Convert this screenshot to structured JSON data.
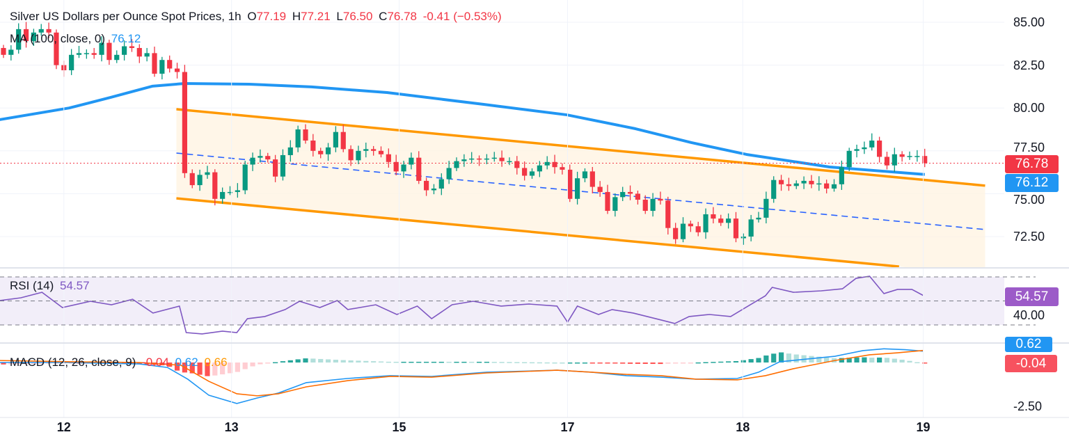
{
  "legend": {
    "title": "Silver US Dollars per Ounce Spot Prices, 1h",
    "o_label": "O",
    "o": "77.19",
    "h_label": "H",
    "h": "77.21",
    "l_label": "L",
    "l": "76.50",
    "c_label": "C",
    "c": "76.78",
    "change": "-0.41 (−0.53%)",
    "ma_label": "MA (100, close, 0)",
    "ma_value": "76.12",
    "rsi_label": "RSI (14)",
    "rsi_value": "54.57",
    "macd_label": "MACD (12, 26, close, 9)",
    "macd_hist": "-0.04",
    "macd_value": "0.62",
    "macd_signal": "0.66"
  },
  "price_tags": {
    "last": "76.78",
    "ma": "76.12",
    "rsi": "54.57",
    "macd": "0.62",
    "hist": "-0.04"
  },
  "colors": {
    "up": "#089981",
    "down": "#F23645",
    "ma": "#2196F3",
    "channel": "#FF9800",
    "rsi": "#7E57C2",
    "signal": "#FF6D00"
  },
  "chart_data": {
    "type": "candlestick",
    "title": "Silver US Dollars per Ounce Spot Prices, 1h",
    "price_axis": {
      "ticks": [
        "85.00",
        "82.50",
        "80.00",
        "77.50",
        "75.00",
        "72.50"
      ],
      "tick_values": [
        85,
        82.5,
        80,
        77.5,
        75,
        72.5
      ],
      "range": [
        70.5,
        86.3
      ]
    },
    "time_axis": {
      "labels": [
        "12",
        "13",
        "15",
        "17",
        "18",
        "19"
      ],
      "bar_index": [
        8.0,
        30.2,
        52.4,
        74.7,
        97.9,
        121.8
      ]
    },
    "first_open": 83.5,
    "closes": [
      83.1,
      83.4,
      84.6,
      83.9,
      84.4,
      84.6,
      84.4,
      82.5,
      82.2,
      83.1,
      83.2,
      83.2,
      83.1,
      83.8,
      82.8,
      83.1,
      83.6,
      83.5,
      83.0,
      83.2,
      82.0,
      82.8,
      82.3,
      82.1,
      76.2,
      75.5,
      76.1,
      76.25,
      74.7,
      75.1,
      75.1,
      75.2,
      76.7,
      77.1,
      77.2,
      77.0,
      76.0,
      77.25,
      77.7,
      78.75,
      78.1,
      77.5,
      77.3,
      77.7,
      78.6,
      77.6,
      76.95,
      77.5,
      77.6,
      77.5,
      77.3,
      76.85,
      76.3,
      76.7,
      77.1,
      75.75,
      75.2,
      75.3,
      75.85,
      76.5,
      76.9,
      77.0,
      77.05,
      77.0,
      77.05,
      77.1,
      76.9,
      76.9,
      76.5,
      76.05,
      76.3,
      76.65,
      76.85,
      76.55,
      76.4,
      74.7,
      75.9,
      76.3,
      75.4,
      75.1,
      74.0,
      74.8,
      75.1,
      75.0,
      74.65,
      74.0,
      74.7,
      74.6,
      73.0,
      72.35,
      73.25,
      73.1,
      72.75,
      73.8,
      73.55,
      73.3,
      73.55,
      72.4,
      72.5,
      73.5,
      73.6,
      74.7,
      75.8,
      75.55,
      75.45,
      75.6,
      75.75,
      75.55,
      75.6,
      75.3,
      75.55,
      76.55,
      77.5,
      77.6,
      77.7,
      78.1,
      77.15,
      76.65,
      77.3,
      77.15,
      77.2,
      77.2,
      76.78
    ],
    "ma100": [
      [
        -0.5,
        79.32
      ],
      [
        8.7,
        80.0
      ],
      [
        14.2,
        80.62
      ],
      [
        19.7,
        81.27
      ],
      [
        24,
        81.43
      ],
      [
        32.5,
        81.39
      ],
      [
        40.8,
        81.23
      ],
      [
        50.8,
        80.9
      ],
      [
        63.6,
        80.21
      ],
      [
        74.6,
        79.6
      ],
      [
        83.7,
        78.79
      ],
      [
        91.1,
        77.98
      ],
      [
        98.4,
        77.29
      ],
      [
        109.4,
        76.56
      ],
      [
        122,
        76.12
      ]
    ],
    "channel": {
      "upper": [
        [
          22.9,
          79.93
        ],
        [
          130,
          75.47
        ]
      ],
      "lower": [
        [
          22.9,
          74.73
        ],
        [
          118.6,
          70.75
        ]
      ],
      "middle": [
        [
          22.9,
          77.37
        ],
        [
          130,
          72.91
        ]
      ],
      "fill_end": 130
    },
    "last_price_line": 76.78,
    "rsi": {
      "levels": [
        70,
        50,
        30
      ],
      "axis_tick": "40.00",
      "axis_tick_value": 40,
      "points": [
        [
          -0.5,
          50.3
        ],
        [
          2.3,
          52.6
        ],
        [
          5.1,
          57.2
        ],
        [
          7.8,
          44.5
        ],
        [
          11.5,
          49.7
        ],
        [
          14.3,
          46.8
        ],
        [
          17.1,
          51.4
        ],
        [
          19.8,
          39.9
        ],
        [
          23.3,
          45.7
        ],
        [
          24.2,
          23.6
        ],
        [
          26.3,
          22.5
        ],
        [
          29,
          24.8
        ],
        [
          30.9,
          23.6
        ],
        [
          32.3,
          35.2
        ],
        [
          34.6,
          37.0
        ],
        [
          37.3,
          42.8
        ],
        [
          39.2,
          49.7
        ],
        [
          41.9,
          44.5
        ],
        [
          44.2,
          50.3
        ],
        [
          45.6,
          42.8
        ],
        [
          49.3,
          46.8
        ],
        [
          52.1,
          38.7
        ],
        [
          54.8,
          45.7
        ],
        [
          56.7,
          35.2
        ],
        [
          59.4,
          46.8
        ],
        [
          62.2,
          49.7
        ],
        [
          65.9,
          45.7
        ],
        [
          69.6,
          47.4
        ],
        [
          73.3,
          45.7
        ],
        [
          74.7,
          32.3
        ],
        [
          76,
          45.7
        ],
        [
          78.8,
          38.7
        ],
        [
          80.6,
          42.8
        ],
        [
          83.4,
          39.9
        ],
        [
          87.1,
          34.1
        ],
        [
          88.9,
          31.2
        ],
        [
          90.8,
          37.0
        ],
        [
          93.5,
          38.7
        ],
        [
          96.3,
          37.0
        ],
        [
          98.6,
          45.7
        ],
        [
          100.9,
          54.3
        ],
        [
          101.8,
          61.3
        ],
        [
          104.6,
          57.2
        ],
        [
          108.3,
          58.4
        ],
        [
          111.1,
          60.1
        ],
        [
          112.9,
          68.8
        ],
        [
          114.7,
          70.6
        ],
        [
          116.6,
          56.1
        ],
        [
          118.4,
          59.6
        ],
        [
          120.3,
          59.6
        ],
        [
          121.8,
          54.57
        ]
      ]
    },
    "macd": {
      "axis_tick": "-2.50",
      "axis_tick_value": -2.5,
      "macd": [
        [
          -0.5,
          0
        ],
        [
          8.8,
          0
        ],
        [
          18,
          -0.08
        ],
        [
          21.7,
          -0.27
        ],
        [
          24.4,
          -0.91
        ],
        [
          27.2,
          -1.79
        ],
        [
          30.9,
          -2.24
        ],
        [
          33.6,
          -1.94
        ],
        [
          36.4,
          -1.67
        ],
        [
          40.1,
          -1.1
        ],
        [
          45.6,
          -0.87
        ],
        [
          51.2,
          -0.72
        ],
        [
          56.7,
          -0.76
        ],
        [
          64,
          -0.53
        ],
        [
          73.3,
          -0.42
        ],
        [
          77.9,
          -0.53
        ],
        [
          82.5,
          -0.72
        ],
        [
          87.1,
          -0.8
        ],
        [
          91.7,
          -0.91
        ],
        [
          97.2,
          -0.87
        ],
        [
          100,
          -0.53
        ],
        [
          102.8,
          0.04
        ],
        [
          107.4,
          0.23
        ],
        [
          110.1,
          0.34
        ],
        [
          113.8,
          0.65
        ],
        [
          116.6,
          0.75
        ],
        [
          119.4,
          0.7
        ],
        [
          121.8,
          0.62
        ]
      ],
      "signal": [
        [
          -0.5,
          0.11
        ],
        [
          8.8,
          0.04
        ],
        [
          18,
          0
        ],
        [
          23.5,
          -0.15
        ],
        [
          27.2,
          -1.03
        ],
        [
          30.9,
          -1.71
        ],
        [
          33.6,
          -1.82
        ],
        [
          36.4,
          -1.71
        ],
        [
          40.1,
          -1.33
        ],
        [
          45.6,
          -0.99
        ],
        [
          51.2,
          -0.76
        ],
        [
          56.7,
          -0.8
        ],
        [
          64,
          -0.57
        ],
        [
          73.3,
          -0.42
        ],
        [
          77.9,
          -0.53
        ],
        [
          82.5,
          -0.65
        ],
        [
          87.1,
          -0.72
        ],
        [
          91.7,
          -0.91
        ],
        [
          97.2,
          -0.95
        ],
        [
          100.9,
          -0.72
        ],
        [
          104.6,
          -0.34
        ],
        [
          110.1,
          0.11
        ],
        [
          114.7,
          0.42
        ],
        [
          118.4,
          0.53
        ],
        [
          121.8,
          0.66
        ]
      ]
    }
  }
}
